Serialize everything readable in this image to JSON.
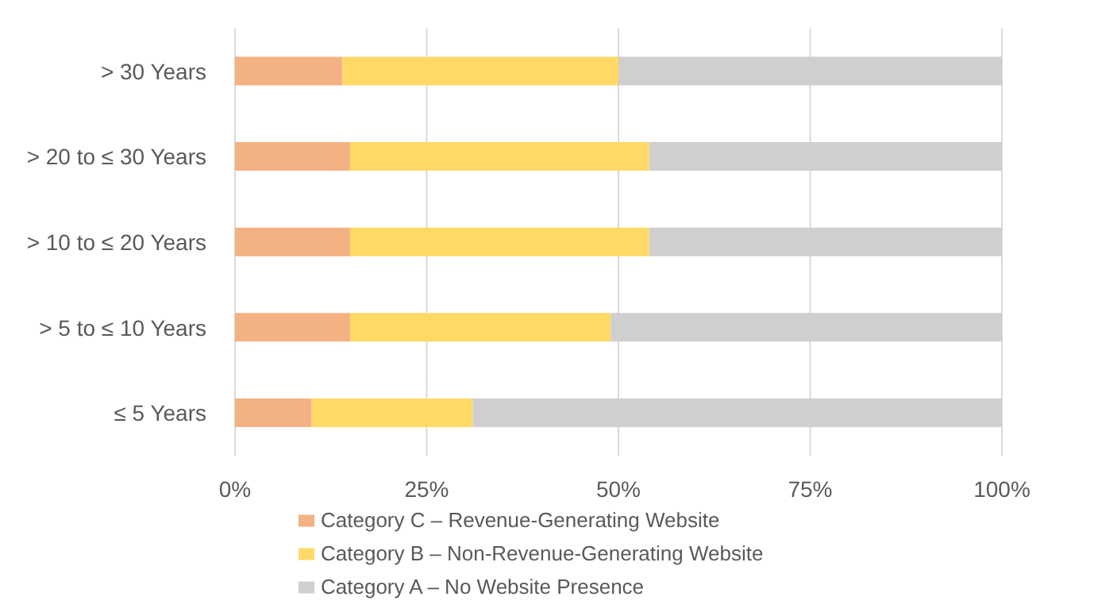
{
  "chart_data": {
    "type": "bar",
    "orientation": "horizontal",
    "stacked": true,
    "categories": [
      "> 30 Years",
      "> 20 to ≤ 30 Years",
      "> 10 to ≤ 20 Years",
      "> 5 to ≤ 10 Years",
      "≤ 5 Years"
    ],
    "series": [
      {
        "name": "Category C – Revenue-Generating Website",
        "color": "#f4b183",
        "values": [
          14,
          15,
          15,
          15,
          10
        ]
      },
      {
        "name": "Category B – Non-Revenue-Generating Website",
        "color": "#ffd966",
        "values": [
          36,
          39,
          39,
          34,
          21
        ]
      },
      {
        "name": "Category A – No Website Presence",
        "color": "#d0cece",
        "values": [
          50,
          46,
          46,
          51,
          69
        ]
      }
    ],
    "xlim": [
      0,
      100
    ],
    "xticks": [
      {
        "value": 0,
        "label": "0%"
      },
      {
        "value": 25,
        "label": "25%"
      },
      {
        "value": 50,
        "label": "50%"
      },
      {
        "value": 75,
        "label": "75%"
      },
      {
        "value": 100,
        "label": "100%"
      }
    ],
    "grid": "x",
    "legend": "bottom"
  }
}
